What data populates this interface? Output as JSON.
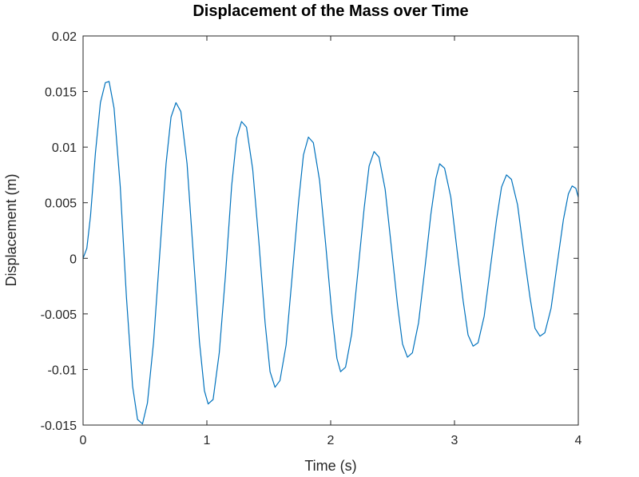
{
  "chart_data": {
    "type": "line",
    "title": "Displacement of the Mass over Time",
    "xlabel": "Time (s)",
    "ylabel": "Displacement (m)",
    "xlim": [
      0,
      4
    ],
    "ylim": [
      -0.015,
      0.02
    ],
    "x_ticks": [
      0,
      1,
      2,
      3,
      4
    ],
    "x_tick_labels": [
      "0",
      "1",
      "2",
      "3",
      "4"
    ],
    "y_ticks": [
      -0.015,
      -0.01,
      -0.005,
      0,
      0.005,
      0.01,
      0.015,
      0.02
    ],
    "y_tick_labels": [
      "-0.015",
      "-0.01",
      "-0.005",
      "0",
      "0.005",
      "0.01",
      "0.015",
      "0.02"
    ],
    "grid": false,
    "legend": false,
    "series": [
      {
        "color": "#0072BD",
        "x": [
          0,
          0.03,
          0.06,
          0.1,
          0.14,
          0.18,
          0.21,
          0.25,
          0.3,
          0.35,
          0.4,
          0.44,
          0.48,
          0.52,
          0.57,
          0.62,
          0.67,
          0.71,
          0.75,
          0.79,
          0.84,
          0.89,
          0.94,
          0.98,
          1.01,
          1.05,
          1.1,
          1.15,
          1.2,
          1.24,
          1.28,
          1.32,
          1.37,
          1.42,
          1.47,
          1.51,
          1.55,
          1.59,
          1.64,
          1.69,
          1.74,
          1.78,
          1.82,
          1.86,
          1.91,
          1.96,
          2.01,
          2.05,
          2.08,
          2.12,
          2.17,
          2.22,
          2.27,
          2.31,
          2.35,
          2.39,
          2.44,
          2.49,
          2.54,
          2.58,
          2.62,
          2.66,
          2.71,
          2.76,
          2.81,
          2.85,
          2.88,
          2.92,
          2.97,
          3.02,
          3.07,
          3.11,
          3.15,
          3.19,
          3.24,
          3.29,
          3.34,
          3.38,
          3.42,
          3.46,
          3.51,
          3.56,
          3.61,
          3.65,
          3.69,
          3.73,
          3.78,
          3.83,
          3.88,
          3.92,
          3.95,
          3.98,
          4.0
        ],
        "y": [
          0,
          0.0009,
          0.0038,
          0.0095,
          0.014,
          0.0158,
          0.0159,
          0.0135,
          0.0065,
          -0.0035,
          -0.0115,
          -0.0145,
          -0.0149,
          -0.013,
          -0.0075,
          0.0005,
          0.0085,
          0.0127,
          0.014,
          0.0132,
          0.0085,
          0.0005,
          -0.0075,
          -0.0119,
          -0.0131,
          -0.0127,
          -0.0085,
          -0.0015,
          0.0065,
          0.0108,
          0.0123,
          0.0118,
          0.008,
          0.0015,
          -0.0058,
          -0.0102,
          -0.0116,
          -0.011,
          -0.0078,
          -0.0015,
          0.005,
          0.0093,
          0.0109,
          0.0104,
          0.007,
          0.0012,
          -0.005,
          -0.009,
          -0.0102,
          -0.0098,
          -0.0068,
          -0.0012,
          0.0045,
          0.0083,
          0.0096,
          0.0091,
          0.0062,
          0.001,
          -0.0042,
          -0.0077,
          -0.0089,
          -0.0085,
          -0.0058,
          -0.001,
          0.004,
          0.0072,
          0.0085,
          0.0081,
          0.0055,
          0.0008,
          -0.0038,
          -0.0069,
          -0.0079,
          -0.0076,
          -0.0052,
          -0.0008,
          0.0035,
          0.0064,
          0.0075,
          0.0071,
          0.0048,
          0.0005,
          -0.0035,
          -0.0063,
          -0.007,
          -0.0067,
          -0.0045,
          -0.0005,
          0.0035,
          0.0058,
          0.0065,
          0.0063,
          0.0055
        ]
      }
    ]
  }
}
